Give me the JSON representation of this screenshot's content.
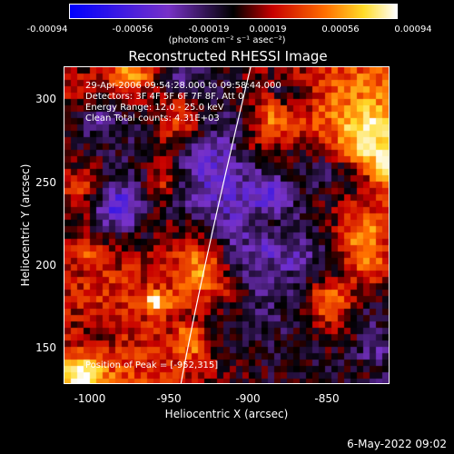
{
  "colorbar": {
    "ticks": [
      "-0.00094",
      "-0.00056",
      "-0.00019",
      "0.00019",
      "0.00056",
      "0.00094"
    ],
    "units": "(photons cm⁻² s⁻¹ asec⁻²)"
  },
  "title": "Reconstructed RHESSI Image",
  "overlay": {
    "line1": "29-Apr-2006 09:54:28.000 to 09:58:44.000",
    "line2": "Detectors: 3F 4F 5F 6F 7F 8F, Att 0",
    "line3": "Energy Range: 12.0 - 25.0 keV",
    "line4": "Clean    Total counts: 4.31E+03",
    "peak": "Position of Peak = [-952,315]"
  },
  "axes": {
    "xlabel": "Heliocentric X (arcsec)",
    "ylabel": "Heliocentric Y (arcsec)",
    "xticks": [
      "-1000",
      "-950",
      "-900",
      "-850"
    ],
    "yticks": [
      "300",
      "250",
      "200",
      "150"
    ]
  },
  "timestamp": "6-May-2022 09:02"
}
